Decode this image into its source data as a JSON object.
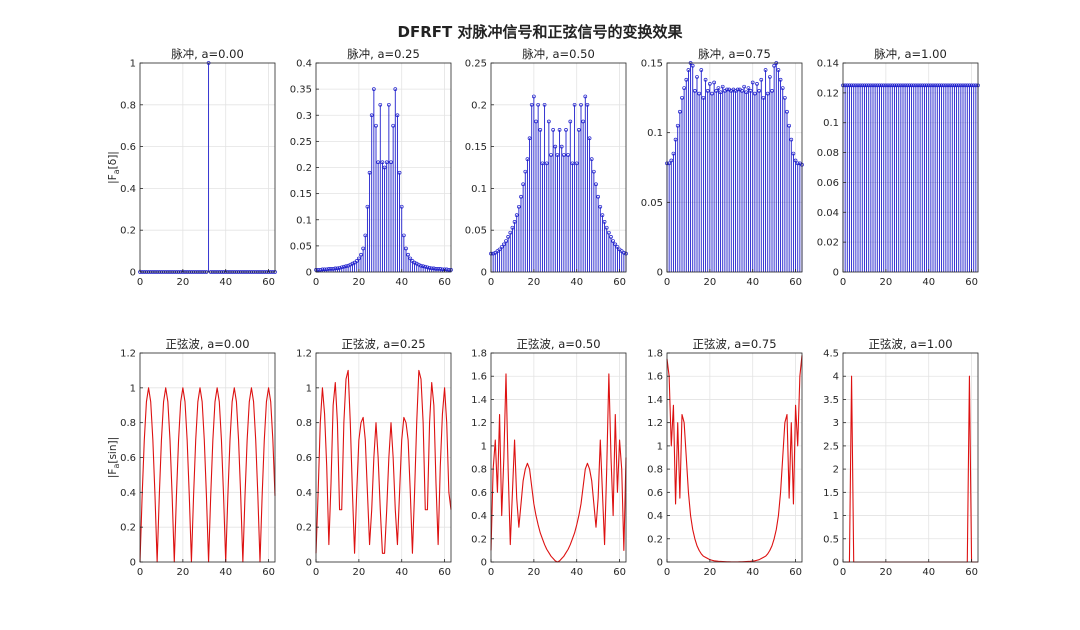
{
  "figure": {
    "title": "DFRFT 对脉冲信号和正弦信号的变换效果"
  },
  "colors": {
    "impulse": "#1f1fcc",
    "sine": "#dd1111"
  },
  "chart_data": [
    {
      "type": "stem",
      "title": "脉冲, a=0.00",
      "ylabel": "|F_a[δ]|",
      "xlim": [
        0,
        63
      ],
      "ylim": [
        0,
        1
      ],
      "xticks": [
        0,
        20,
        40,
        60
      ],
      "yticks": [
        0,
        0.2,
        0.4,
        0.6,
        0.8,
        1
      ],
      "ytick_labels": [
        "0",
        "0.2",
        "0.4",
        "0.6",
        "0.8",
        "1"
      ],
      "series": [
        {
          "x": "0..63",
          "values": [
            0,
            0,
            0,
            0,
            0,
            0,
            0,
            0,
            0,
            0,
            0,
            0,
            0,
            0,
            0,
            0,
            0,
            0,
            0,
            0,
            0,
            0,
            0,
            0,
            0,
            0,
            0,
            0,
            0,
            0,
            0,
            0,
            1,
            0,
            0,
            0,
            0,
            0,
            0,
            0,
            0,
            0,
            0,
            0,
            0,
            0,
            0,
            0,
            0,
            0,
            0,
            0,
            0,
            0,
            0,
            0,
            0,
            0,
            0,
            0,
            0,
            0,
            0,
            0
          ]
        }
      ]
    },
    {
      "type": "stem",
      "title": "脉冲, a=0.25",
      "ylabel": "",
      "xlim": [
        0,
        63
      ],
      "ylim": [
        0,
        0.4
      ],
      "xticks": [
        0,
        20,
        40,
        60
      ],
      "yticks": [
        0,
        0.05,
        0.1,
        0.15,
        0.2,
        0.25,
        0.3,
        0.35,
        0.4
      ],
      "ytick_labels": [
        "0",
        "0.05",
        "0.1",
        "0.15",
        "0.2",
        "0.25",
        "0.3",
        "0.35",
        "0.4"
      ],
      "series": [
        {
          "x": "0..63",
          "values": [
            0.004,
            0.004,
            0.004,
            0.005,
            0.005,
            0.005,
            0.006,
            0.006,
            0.006,
            0.007,
            0.007,
            0.008,
            0.009,
            0.01,
            0.011,
            0.012,
            0.014,
            0.016,
            0.018,
            0.021,
            0.026,
            0.033,
            0.045,
            0.07,
            0.125,
            0.19,
            0.3,
            0.35,
            0.28,
            0.21,
            0.32,
            0.21,
            0.2,
            0.21,
            0.32,
            0.21,
            0.28,
            0.35,
            0.3,
            0.19,
            0.125,
            0.07,
            0.045,
            0.033,
            0.026,
            0.021,
            0.018,
            0.016,
            0.014,
            0.012,
            0.011,
            0.01,
            0.009,
            0.008,
            0.007,
            0.007,
            0.006,
            0.006,
            0.006,
            0.005,
            0.005,
            0.005,
            0.004,
            0.004
          ]
        }
      ]
    },
    {
      "type": "stem",
      "title": "脉冲, a=0.50",
      "ylabel": "",
      "xlim": [
        0,
        63
      ],
      "ylim": [
        0,
        0.25
      ],
      "xticks": [
        0,
        20,
        40,
        60
      ],
      "yticks": [
        0,
        0.05,
        0.1,
        0.15,
        0.2,
        0.25
      ],
      "ytick_labels": [
        "0",
        "0.05",
        "0.1",
        "0.15",
        "0.2",
        "0.25"
      ],
      "series": [
        {
          "x": "0..63",
          "values": [
            0.022,
            0.022,
            0.023,
            0.025,
            0.027,
            0.03,
            0.033,
            0.037,
            0.042,
            0.047,
            0.053,
            0.06,
            0.068,
            0.078,
            0.09,
            0.105,
            0.12,
            0.135,
            0.16,
            0.2,
            0.21,
            0.18,
            0.2,
            0.17,
            0.13,
            0.2,
            0.13,
            0.18,
            0.14,
            0.17,
            0.15,
            0.14,
            0.17,
            0.15,
            0.14,
            0.17,
            0.14,
            0.18,
            0.13,
            0.2,
            0.13,
            0.17,
            0.2,
            0.18,
            0.21,
            0.2,
            0.16,
            0.135,
            0.12,
            0.105,
            0.09,
            0.078,
            0.068,
            0.06,
            0.053,
            0.047,
            0.042,
            0.037,
            0.033,
            0.03,
            0.027,
            0.025,
            0.023,
            0.022
          ]
        }
      ]
    },
    {
      "type": "stem",
      "title": "脉冲, a=0.75",
      "ylabel": "",
      "xlim": [
        0,
        63
      ],
      "ylim": [
        0,
        0.15
      ],
      "xticks": [
        0,
        20,
        40,
        60
      ],
      "yticks": [
        0,
        0.05,
        0.1,
        0.15
      ],
      "ytick_labels": [
        "0",
        "0.05",
        "0.1",
        "0.15"
      ],
      "series": [
        {
          "x": "0..63",
          "values": [
            0.078,
            0.078,
            0.08,
            0.085,
            0.095,
            0.105,
            0.115,
            0.125,
            0.132,
            0.138,
            0.145,
            0.15,
            0.148,
            0.13,
            0.14,
            0.128,
            0.145,
            0.125,
            0.138,
            0.13,
            0.135,
            0.128,
            0.136,
            0.13,
            0.132,
            0.129,
            0.133,
            0.13,
            0.131,
            0.131,
            0.13,
            0.131,
            0.13,
            0.131,
            0.131,
            0.13,
            0.133,
            0.129,
            0.132,
            0.13,
            0.136,
            0.128,
            0.135,
            0.13,
            0.138,
            0.125,
            0.145,
            0.128,
            0.14,
            0.13,
            0.148,
            0.15,
            0.145,
            0.138,
            0.132,
            0.125,
            0.115,
            0.105,
            0.095,
            0.085,
            0.08,
            0.078,
            0.078,
            0.077
          ]
        }
      ]
    },
    {
      "type": "stem",
      "title": "脉冲, a=1.00",
      "ylabel": "",
      "xlim": [
        0,
        63
      ],
      "ylim": [
        0,
        0.14
      ],
      "xticks": [
        0,
        20,
        40,
        60
      ],
      "yticks": [
        0,
        0.02,
        0.04,
        0.06,
        0.08,
        0.1,
        0.12,
        0.14
      ],
      "ytick_labels": [
        "0",
        "0.02",
        "0.04",
        "0.06",
        "0.08",
        "0.1",
        "0.12",
        "0.14"
      ],
      "series": [
        {
          "x": "0..63",
          "values": [
            0.125,
            0.125,
            0.125,
            0.125,
            0.125,
            0.125,
            0.125,
            0.125,
            0.125,
            0.125,
            0.125,
            0.125,
            0.125,
            0.125,
            0.125,
            0.125,
            0.125,
            0.125,
            0.125,
            0.125,
            0.125,
            0.125,
            0.125,
            0.125,
            0.125,
            0.125,
            0.125,
            0.125,
            0.125,
            0.125,
            0.125,
            0.125,
            0.125,
            0.125,
            0.125,
            0.125,
            0.125,
            0.125,
            0.125,
            0.125,
            0.125,
            0.125,
            0.125,
            0.125,
            0.125,
            0.125,
            0.125,
            0.125,
            0.125,
            0.125,
            0.125,
            0.125,
            0.125,
            0.125,
            0.125,
            0.125,
            0.125,
            0.125,
            0.125,
            0.125,
            0.125,
            0.125,
            0.125,
            0.125
          ]
        }
      ]
    },
    {
      "type": "line",
      "title": "正弦波, a=0.00",
      "ylabel": "|F_a[sin]|",
      "xlim": [
        0,
        63
      ],
      "ylim": [
        0,
        1.2
      ],
      "xticks": [
        0,
        20,
        40,
        60
      ],
      "yticks": [
        0,
        0.2,
        0.4,
        0.6,
        0.8,
        1,
        1.2
      ],
      "ytick_labels": [
        "0",
        "0.2",
        "0.4",
        "0.6",
        "0.8",
        "1",
        "1.2"
      ],
      "series": [
        {
          "x": "0..63",
          "values": [
            0,
            0.38,
            0.7,
            0.92,
            1.0,
            0.92,
            0.7,
            0.38,
            0,
            0.38,
            0.7,
            0.92,
            1.0,
            0.92,
            0.7,
            0.38,
            0,
            0.38,
            0.7,
            0.92,
            1.0,
            0.92,
            0.7,
            0.38,
            0,
            0.38,
            0.7,
            0.92,
            1.0,
            0.92,
            0.7,
            0.38,
            0,
            0.38,
            0.7,
            0.92,
            1.0,
            0.92,
            0.7,
            0.38,
            0,
            0.38,
            0.7,
            0.92,
            1.0,
            0.92,
            0.7,
            0.38,
            0,
            0.38,
            0.7,
            0.92,
            1.0,
            0.92,
            0.7,
            0.38,
            0,
            0.38,
            0.7,
            0.92,
            1.0,
            0.92,
            0.7,
            0.38
          ]
        }
      ]
    },
    {
      "type": "line",
      "title": "正弦波, a=0.25",
      "ylabel": "",
      "xlim": [
        0,
        63
      ],
      "ylim": [
        0,
        1.2
      ],
      "xticks": [
        0,
        20,
        40,
        60
      ],
      "yticks": [
        0,
        0.2,
        0.4,
        0.6,
        0.8,
        1,
        1.2
      ],
      "ytick_labels": [
        "0",
        "0.2",
        "0.4",
        "0.6",
        "0.8",
        "1",
        "1.2"
      ],
      "series": [
        {
          "x": "0..63",
          "values": [
            0.05,
            0.4,
            0.8,
            1.0,
            0.85,
            0.55,
            0.1,
            0.45,
            0.9,
            1.03,
            0.8,
            0.3,
            0.3,
            0.8,
            1.05,
            1.1,
            0.8,
            0.4,
            0.05,
            0.4,
            0.7,
            0.8,
            0.83,
            0.7,
            0.4,
            0.1,
            0.3,
            0.6,
            0.8,
            0.6,
            0.3,
            0.05,
            0.05,
            0.3,
            0.6,
            0.8,
            0.6,
            0.3,
            0.1,
            0.4,
            0.7,
            0.83,
            0.8,
            0.7,
            0.4,
            0.05,
            0.4,
            0.8,
            1.1,
            1.05,
            0.8,
            0.3,
            0.3,
            0.8,
            1.03,
            0.9,
            0.45,
            0.1,
            0.55,
            0.85,
            1.0,
            0.8,
            0.4,
            0.3
          ]
        }
      ]
    },
    {
      "type": "line",
      "title": "正弦波, a=0.50",
      "ylabel": "",
      "xlim": [
        0,
        63
      ],
      "ylim": [
        0,
        1.8
      ],
      "xticks": [
        0,
        20,
        40,
        60
      ],
      "yticks": [
        0,
        0.2,
        0.4,
        0.6,
        0.8,
        1,
        1.2,
        1.4,
        1.6,
        1.8
      ],
      "ytick_labels": [
        "0",
        "0.2",
        "0.4",
        "0.6",
        "0.8",
        "1",
        "1.2",
        "1.4",
        "1.6",
        "1.8"
      ],
      "series": [
        {
          "x": "0..63",
          "values": [
            0.1,
            0.8,
            1.05,
            0.6,
            1.27,
            0.4,
            0.9,
            1.62,
            0.8,
            0.15,
            0.6,
            1.05,
            0.55,
            0.3,
            0.5,
            0.7,
            0.8,
            0.85,
            0.8,
            0.65,
            0.5,
            0.4,
            0.32,
            0.25,
            0.2,
            0.15,
            0.11,
            0.08,
            0.05,
            0.03,
            0.01,
            0.0,
            0.01,
            0.03,
            0.05,
            0.08,
            0.11,
            0.15,
            0.2,
            0.25,
            0.32,
            0.4,
            0.5,
            0.65,
            0.8,
            0.85,
            0.8,
            0.7,
            0.5,
            0.3,
            0.55,
            1.05,
            0.6,
            0.15,
            0.8,
            1.62,
            0.9,
            0.4,
            1.27,
            0.6,
            1.05,
            0.8,
            0.1,
            0.9
          ]
        }
      ]
    },
    {
      "type": "line",
      "title": "正弦波, a=0.75",
      "ylabel": "",
      "xlim": [
        0,
        63
      ],
      "ylim": [
        0,
        1.8
      ],
      "xticks": [
        0,
        20,
        40,
        60
      ],
      "yticks": [
        0,
        0.2,
        0.4,
        0.6,
        0.8,
        1,
        1.2,
        1.4,
        1.6,
        1.8
      ],
      "ytick_labels": [
        "0",
        "0.2",
        "0.4",
        "0.6",
        "0.8",
        "1",
        "1.2",
        "1.4",
        "1.6",
        "1.8"
      ],
      "series": [
        {
          "x": "0..63",
          "values": [
            1.75,
            1.6,
            1.0,
            1.35,
            0.5,
            1.2,
            0.55,
            1.27,
            1.2,
            0.9,
            0.6,
            0.4,
            0.28,
            0.2,
            0.14,
            0.1,
            0.07,
            0.05,
            0.04,
            0.03,
            0.02,
            0.015,
            0.01,
            0.008,
            0.006,
            0.005,
            0.004,
            0.003,
            0.002,
            0.002,
            0.001,
            0.001,
            0.001,
            0.001,
            0.002,
            0.002,
            0.003,
            0.004,
            0.005,
            0.006,
            0.008,
            0.01,
            0.015,
            0.02,
            0.03,
            0.04,
            0.05,
            0.07,
            0.1,
            0.14,
            0.2,
            0.28,
            0.4,
            0.6,
            0.9,
            1.2,
            1.27,
            0.55,
            1.2,
            0.5,
            1.35,
            1.0,
            1.6,
            1.78
          ]
        }
      ]
    },
    {
      "type": "line",
      "title": "正弦波, a=1.00",
      "ylabel": "",
      "xlim": [
        0,
        63
      ],
      "ylim": [
        0,
        4.5
      ],
      "xticks": [
        0,
        20,
        40,
        60
      ],
      "yticks": [
        0,
        0.5,
        1,
        1.5,
        2,
        2.5,
        3,
        3.5,
        4,
        4.5
      ],
      "ytick_labels": [
        "0",
        "0.5",
        "1",
        "1.5",
        "2",
        "2.5",
        "3",
        "3.5",
        "4",
        "4.5"
      ],
      "series": [
        {
          "x": "0..63",
          "values": [
            0,
            0,
            0,
            0,
            4.0,
            0,
            0,
            0,
            0,
            0,
            0,
            0,
            0,
            0,
            0,
            0,
            0,
            0,
            0,
            0,
            0,
            0,
            0,
            0,
            0,
            0,
            0,
            0,
            0,
            0,
            0,
            0,
            0,
            0,
            0,
            0,
            0,
            0,
            0,
            0,
            0,
            0,
            0,
            0,
            0,
            0,
            0,
            0,
            0,
            0,
            0,
            0,
            0,
            0,
            0,
            0,
            0,
            0,
            0,
            4.0,
            0,
            0,
            0,
            0
          ]
        }
      ]
    }
  ]
}
